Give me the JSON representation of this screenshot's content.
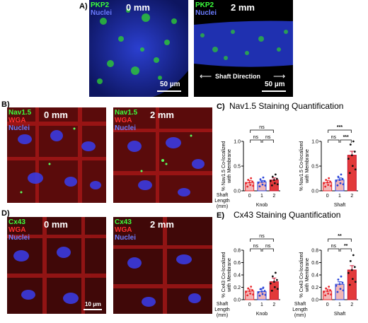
{
  "panelA": {
    "label": "A)",
    "left": {
      "ch1": "PKP2",
      "ch2": "Nuclei",
      "length": "0 mm",
      "scale": "50 µm"
    },
    "right": {
      "ch1": "PKP2",
      "ch2": "Nuclei",
      "length": "2 mm",
      "scale": "50 µm",
      "shaft": "Shaft Direction"
    }
  },
  "panelB": {
    "label": "B)",
    "left": {
      "ch1": "Nav1.5",
      "ch2": "WGA",
      "ch3": "Nuclei",
      "length": "0 mm"
    },
    "right": {
      "ch1": "Nav1.5",
      "ch2": "WGA",
      "ch3": "Nuclei",
      "length": "2 mm"
    }
  },
  "panelD": {
    "label": "D)",
    "left": {
      "ch1": "Cx43",
      "ch2": "WGA",
      "ch3": "Nuclei",
      "length": "0 mm",
      "scale": "10 µm"
    },
    "right": {
      "ch1": "Cx43",
      "ch2": "WGA",
      "ch3": "Nuclei",
      "length": "2 mm"
    }
  },
  "panelC": {
    "label": "C)",
    "title": "Nav1.5 Staining Quantification"
  },
  "panelE": {
    "label": "E)",
    "title": "Cx43 Staining Quantification"
  },
  "colors": {
    "zero": "#e8262b",
    "one": "#2b45d9",
    "two": "#c8102e",
    "green": "#3cff3c",
    "red": "#ff2020",
    "blue": "#2a3aff"
  },
  "chart_data": [
    {
      "type": "bar",
      "panel": "C-knob",
      "ylabel": "% Nav1.5 Co-localized with Membrane",
      "xlabel": "Shaft Length (mm)",
      "group": "Knob",
      "categories": [
        "0",
        "1",
        "2"
      ],
      "values": [
        0.17,
        0.18,
        0.22
      ],
      "errors": [
        0.04,
        0.03,
        0.04
      ],
      "ylim": [
        0,
        1
      ],
      "yticks": [
        "0.0",
        "0.5",
        "1.0"
      ],
      "significance": [
        {
          "from": "0",
          "to": "1",
          "label": "ns"
        },
        {
          "from": "1",
          "to": "2",
          "label": "ns"
        },
        {
          "from": "0",
          "to": "2",
          "label": "ns"
        }
      ]
    },
    {
      "type": "bar",
      "panel": "C-shaft",
      "ylabel": "% Nav1.5 Co-localized with Membrane",
      "group": "Shaft",
      "categories": [
        "0",
        "1",
        "2"
      ],
      "values": [
        0.17,
        0.22,
        0.72
      ],
      "errors": [
        0.04,
        0.04,
        0.08
      ],
      "ylim": [
        0,
        1
      ],
      "yticks": [
        "0.0",
        "0.5",
        "1.0"
      ],
      "significance": [
        {
          "from": "0",
          "to": "1",
          "label": "ns"
        },
        {
          "from": "1",
          "to": "2",
          "label": "***"
        },
        {
          "from": "0",
          "to": "2",
          "label": "***"
        }
      ]
    },
    {
      "type": "bar",
      "panel": "E-knob",
      "ylabel": "% Cx43 Co-localized with Membrane",
      "xlabel": "Shaft Length (mm)",
      "group": "Knob",
      "categories": [
        "0",
        "1",
        "2"
      ],
      "values": [
        0.14,
        0.13,
        0.29
      ],
      "errors": [
        0.03,
        0.05,
        0.06
      ],
      "ylim": [
        0,
        0.8
      ],
      "yticks": [
        "0.0",
        "0.2",
        "0.4",
        "0.6",
        "0.8"
      ],
      "significance": [
        {
          "from": "0",
          "to": "1",
          "label": "ns"
        },
        {
          "from": "1",
          "to": "2",
          "label": "ns"
        },
        {
          "from": "0",
          "to": "2",
          "label": "ns"
        }
      ]
    },
    {
      "type": "bar",
      "panel": "E-shaft",
      "ylabel": "% Cx43 Co-localized with Membrane",
      "xlabel": "Shaft Length (mm)",
      "group": "Shaft",
      "categories": [
        "0",
        "1",
        "2"
      ],
      "values": [
        0.14,
        0.25,
        0.48
      ],
      "errors": [
        0.03,
        0.04,
        0.07
      ],
      "ylim": [
        0,
        0.8
      ],
      "yticks": [
        "0.0",
        "0.2",
        "0.4",
        "0.6",
        "0.8"
      ],
      "significance": [
        {
          "from": "0",
          "to": "1",
          "label": "ns"
        },
        {
          "from": "1",
          "to": "2",
          "label": "**"
        },
        {
          "from": "0",
          "to": "2",
          "label": "**"
        }
      ]
    }
  ]
}
